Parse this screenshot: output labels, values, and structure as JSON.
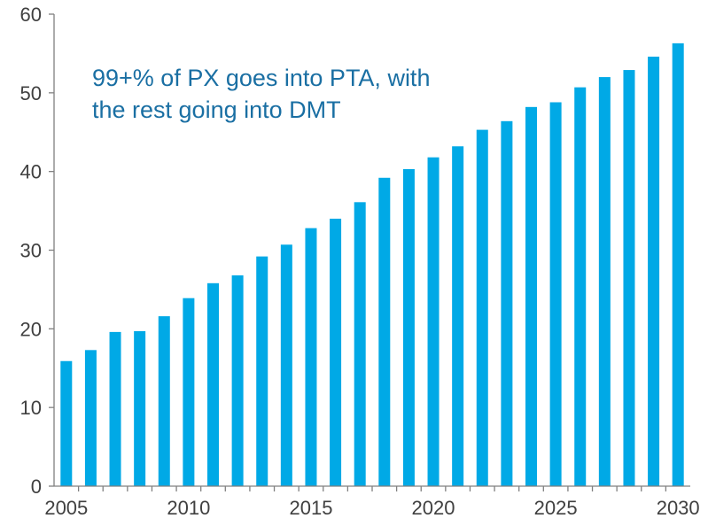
{
  "chart_data": {
    "type": "bar",
    "title": "",
    "xlabel": "",
    "ylabel": "",
    "ylim": [
      0,
      60
    ],
    "yticks": [
      0,
      10,
      20,
      30,
      40,
      50,
      60
    ],
    "xtick_labels": [
      "2005",
      "2010",
      "2015",
      "2020",
      "2025",
      "2030"
    ],
    "categories": [
      "2005",
      "2006",
      "2007",
      "2008",
      "2009",
      "2010",
      "2011",
      "2012",
      "2013",
      "2014",
      "2015",
      "2016",
      "2017",
      "2018",
      "2019",
      "2020",
      "2021",
      "2022",
      "2023",
      "2024",
      "2025",
      "2026",
      "2027",
      "2028",
      "2029",
      "2030"
    ],
    "values": [
      15.9,
      17.3,
      19.6,
      19.7,
      21.6,
      23.9,
      25.8,
      26.8,
      29.2,
      30.7,
      32.8,
      34.0,
      36.1,
      39.2,
      40.3,
      41.8,
      43.2,
      45.3,
      46.4,
      48.2,
      48.8,
      50.7,
      52.0,
      52.9,
      54.6,
      56.3
    ],
    "annotation": [
      "99+% of PX goes into PTA, with",
      "the rest going into DMT"
    ],
    "bar_color": "#00a9e6",
    "annotation_color": "#1a6fa3",
    "axis_color": "#808080"
  }
}
